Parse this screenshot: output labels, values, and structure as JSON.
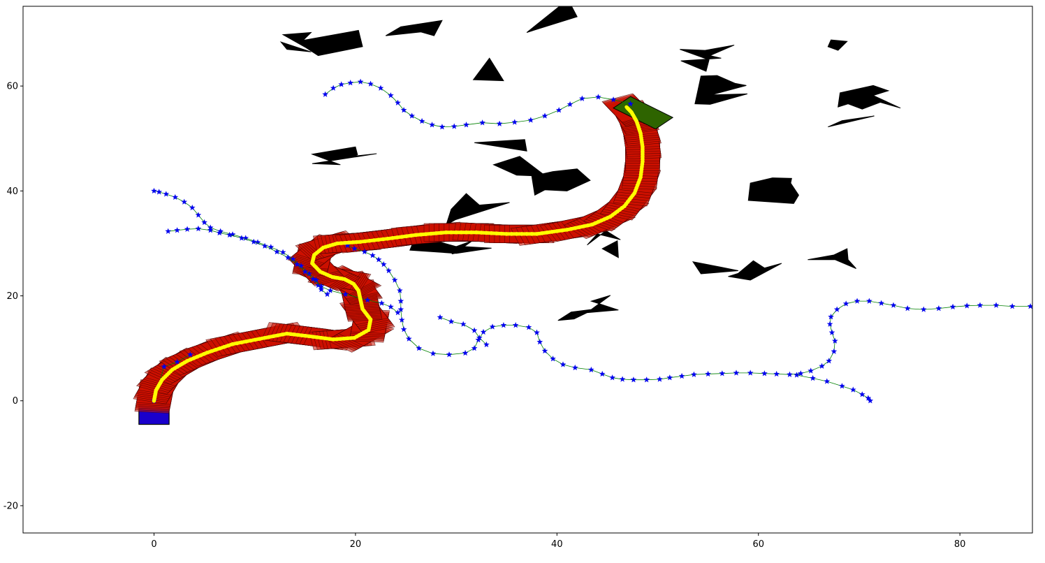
{
  "chart_data": {
    "type": "scatter",
    "title": "",
    "xlabel": "",
    "ylabel": "",
    "xlim": [
      -13,
      87.2
    ],
    "ylim": [
      -25.2,
      75.2
    ],
    "xticks": [
      0,
      20,
      40,
      60,
      80
    ],
    "yticks": [
      -20,
      0,
      20,
      40,
      60
    ],
    "xtick_labels": [
      "0",
      "20",
      "40",
      "60",
      "80"
    ],
    "ytick_labels": [
      "-20",
      "0",
      "20",
      "40",
      "60"
    ],
    "grid": false,
    "legend": "none",
    "colors": {
      "obstacle": "#000000",
      "start": "#1a00cc",
      "goal": "#2e6400",
      "swept_fill": "#cc1100",
      "swept_edge": "#3a0000",
      "path": "#ffff00",
      "tree_node": "#0000ee",
      "tree_edge": "#008000"
    },
    "start_box": {
      "x": [
        -1.5,
        1.5
      ],
      "y": [
        -4.5,
        1.5
      ]
    },
    "goal_polygon": [
      [
        45.6,
        55.8
      ],
      [
        47.3,
        58.0
      ],
      [
        51.5,
        54.0
      ],
      [
        49.8,
        51.8
      ]
    ],
    "obstacles": [
      [
        [
          12.8,
          69.8
        ],
        [
          15.6,
          70.2
        ],
        [
          14.8,
          68.7
        ],
        [
          20.3,
          70.6
        ],
        [
          20.7,
          67.5
        ],
        [
          16.3,
          65.8
        ],
        [
          15.1,
          67.3
        ]
      ],
      [
        [
          13.2,
          67.0
        ],
        [
          15.6,
          66.5
        ],
        [
          12.6,
          68.4
        ]
      ],
      [
        [
          23.0,
          69.6
        ],
        [
          24.5,
          71.3
        ],
        [
          28.6,
          72.5
        ],
        [
          27.8,
          69.6
        ],
        [
          26.5,
          70.3
        ]
      ],
      [
        [
          33.3,
          65.3
        ],
        [
          34.7,
          61.0
        ],
        [
          31.7,
          61.2
        ]
      ],
      [
        [
          37.0,
          70.2
        ],
        [
          42.0,
          73.2
        ],
        [
          41.1,
          76.5
        ]
      ],
      [
        [
          52.2,
          67.0
        ],
        [
          54.7,
          66.8
        ],
        [
          57.6,
          67.8
        ],
        [
          55.2,
          65.8
        ],
        [
          56.3,
          65.3
        ],
        [
          52.3,
          64.8
        ],
        [
          54.8,
          62.8
        ],
        [
          55.1,
          65.0
        ]
      ],
      [
        [
          67.2,
          68.8
        ],
        [
          68.8,
          68.5
        ],
        [
          67.9,
          66.8
        ],
        [
          66.9,
          67.5
        ]
      ],
      [
        [
          54.3,
          61.9
        ],
        [
          55.9,
          62.0
        ],
        [
          57.7,
          60.5
        ],
        [
          58.8,
          60.1
        ],
        [
          55.3,
          58.3
        ],
        [
          58.9,
          58.5
        ],
        [
          55.2,
          56.5
        ],
        [
          53.7,
          56.6
        ]
      ],
      [
        [
          68.1,
          58.7
        ],
        [
          71.4,
          60.1
        ],
        [
          72.9,
          59.1
        ],
        [
          71.4,
          58.2
        ],
        [
          74.1,
          55.8
        ],
        [
          72.1,
          56.9
        ],
        [
          70.3,
          55.6
        ],
        [
          68.9,
          56.6
        ],
        [
          67.9,
          56.0
        ]
      ],
      [
        [
          66.9,
          52.2
        ],
        [
          69.3,
          53.3
        ],
        [
          71.5,
          54.3
        ],
        [
          68.3,
          53.4
        ]
      ],
      [
        [
          15.7,
          47.0
        ],
        [
          20.0,
          48.4
        ],
        [
          20.2,
          46.9
        ],
        [
          19.7,
          46.6
        ],
        [
          22.1,
          47.1
        ],
        [
          15.7,
          45.2
        ],
        [
          18.5,
          45.0
        ]
      ],
      [
        [
          31.8,
          49.2
        ],
        [
          36.8,
          49.8
        ],
        [
          37.0,
          47.6
        ]
      ],
      [
        [
          33.7,
          45.0
        ],
        [
          36.0,
          43.0
        ],
        [
          38.9,
          42.8
        ],
        [
          36.3,
          46.6
        ]
      ],
      [
        [
          37.5,
          42.8
        ],
        [
          39.6,
          43.7
        ],
        [
          42.0,
          44.2
        ],
        [
          43.3,
          42.0
        ],
        [
          41.0,
          40.0
        ],
        [
          38.8,
          40.2
        ],
        [
          37.8,
          39.2
        ]
      ],
      [
        [
          59.2,
          41.5
        ],
        [
          61.4,
          42.5
        ],
        [
          63.3,
          42.4
        ],
        [
          63.2,
          41.5
        ],
        [
          64.0,
          39.2
        ],
        [
          63.5,
          37.6
        ],
        [
          59.0,
          38.2
        ]
      ],
      [
        [
          29.5,
          36.5
        ],
        [
          31.0,
          39.5
        ],
        [
          32.3,
          37.3
        ],
        [
          35.3,
          37.8
        ],
        [
          29.9,
          34.5
        ],
        [
          29.0,
          33.5
        ]
      ],
      [
        [
          26.0,
          31.5
        ],
        [
          27.7,
          30.6
        ],
        [
          30.0,
          29.4
        ],
        [
          31.6,
          30.5
        ],
        [
          30.8,
          29.4
        ],
        [
          33.5,
          29.1
        ],
        [
          30.0,
          28.1
        ],
        [
          25.4,
          28.7
        ]
      ],
      [
        [
          43.0,
          29.7
        ],
        [
          45.6,
          33.5
        ],
        [
          44.8,
          32.5
        ],
        [
          46.3,
          30.7
        ],
        [
          44.0,
          31.8
        ]
      ],
      [
        [
          44.5,
          29.0
        ],
        [
          46.1,
          27.3
        ],
        [
          46.0,
          30.5
        ]
      ],
      [
        [
          53.5,
          26.5
        ],
        [
          56.2,
          25.5
        ],
        [
          58.0,
          24.8
        ],
        [
          54.3,
          24.2
        ]
      ],
      [
        [
          58.0,
          24.3
        ],
        [
          59.5,
          26.7
        ],
        [
          60.6,
          25.3
        ],
        [
          62.3,
          26.2
        ],
        [
          59.2,
          23.0
        ],
        [
          57.0,
          23.7
        ]
      ],
      [
        [
          67.5,
          27.8
        ],
        [
          68.8,
          29.0
        ],
        [
          68.9,
          26.9
        ],
        [
          69.7,
          25.2
        ],
        [
          67.6,
          26.9
        ],
        [
          64.9,
          26.9
        ]
      ],
      [
        [
          41.4,
          16.9
        ],
        [
          43.4,
          17.4
        ],
        [
          45.3,
          20.1
        ],
        [
          43.4,
          19.0
        ],
        [
          46.1,
          17.3
        ],
        [
          43.0,
          16.8
        ],
        [
          41.7,
          15.6
        ],
        [
          40.1,
          15.3
        ]
      ],
      [
        [
          29.5,
          29.0
        ],
        [
          29.6,
          28.0
        ],
        [
          31.5,
          28.8
        ]
      ]
    ],
    "swept_path": [
      [
        0.0,
        0.0
      ],
      [
        0.2,
        2.0
      ],
      [
        0.8,
        4.0
      ],
      [
        1.8,
        5.9
      ],
      [
        3.3,
        7.6
      ],
      [
        5.3,
        9.2
      ],
      [
        7.8,
        10.8
      ],
      [
        10.5,
        11.8
      ],
      [
        13.2,
        12.8
      ],
      [
        15.4,
        12.3
      ],
      [
        17.8,
        11.7
      ],
      [
        19.9,
        12.0
      ],
      [
        21.3,
        13.5
      ],
      [
        21.5,
        15.5
      ],
      [
        20.7,
        17.5
      ],
      [
        20.5,
        19.2
      ],
      [
        20.3,
        21.0
      ],
      [
        19.8,
        22.3
      ],
      [
        18.9,
        23.2
      ],
      [
        17.7,
        23.6
      ],
      [
        16.5,
        24.6
      ],
      [
        15.7,
        26.2
      ],
      [
        15.9,
        27.8
      ],
      [
        16.8,
        29.2
      ],
      [
        18.2,
        30.0
      ],
      [
        20.5,
        30.3
      ],
      [
        23.2,
        30.9
      ],
      [
        26.0,
        31.6
      ],
      [
        29.0,
        32.1
      ],
      [
        32.0,
        32.1
      ],
      [
        35.0,
        31.8
      ],
      [
        38.0,
        31.8
      ],
      [
        41.0,
        32.6
      ],
      [
        43.5,
        33.6
      ],
      [
        45.3,
        35.1
      ],
      [
        46.7,
        37.1
      ],
      [
        47.7,
        39.6
      ],
      [
        48.3,
        42.6
      ],
      [
        48.5,
        45.6
      ],
      [
        48.5,
        48.4
      ],
      [
        48.3,
        51.0
      ],
      [
        47.9,
        53.3
      ],
      [
        47.4,
        55.0
      ],
      [
        46.9,
        56.0
      ]
    ],
    "trees": [
      [
        [
          0.0,
          40.0
        ],
        [
          0.5,
          39.8
        ],
        [
          1.2,
          39.4
        ],
        [
          2.1,
          38.8
        ],
        [
          3.0,
          37.9
        ],
        [
          3.8,
          36.8
        ],
        [
          4.4,
          35.4
        ],
        [
          5.0,
          34.0
        ],
        [
          5.6,
          33.0
        ],
        [
          6.6,
          32.3
        ],
        [
          7.8,
          31.7
        ],
        [
          9.1,
          31.0
        ],
        [
          10.3,
          30.2
        ],
        [
          11.6,
          29.3
        ],
        [
          12.8,
          28.3
        ],
        [
          13.8,
          27.0
        ],
        [
          14.6,
          25.7
        ],
        [
          15.4,
          24.2
        ],
        [
          16.1,
          23.0
        ],
        [
          16.3,
          22.0
        ],
        [
          16.6,
          21.2
        ],
        [
          17.2,
          20.3
        ]
      ],
      [
        [
          1.4,
          32.3
        ],
        [
          2.3,
          32.5
        ],
        [
          3.3,
          32.7
        ],
        [
          4.4,
          32.8
        ],
        [
          5.6,
          32.5
        ],
        [
          6.5,
          32.0
        ],
        [
          7.5,
          31.6
        ],
        [
          8.7,
          31.0
        ],
        [
          9.9,
          30.3
        ],
        [
          11.0,
          29.5
        ],
        [
          12.2,
          28.4
        ],
        [
          13.3,
          27.3
        ],
        [
          14.2,
          26.0
        ],
        [
          15.0,
          24.6
        ],
        [
          15.8,
          23.2
        ],
        [
          16.6,
          21.8
        ],
        [
          17.5,
          21.0
        ],
        [
          19.0,
          20.3
        ],
        [
          21.2,
          19.2
        ],
        [
          22.6,
          18.6
        ],
        [
          23.5,
          17.9
        ],
        [
          24.2,
          16.8
        ]
      ],
      [
        [
          17.0,
          58.4
        ],
        [
          17.8,
          59.6
        ],
        [
          18.6,
          60.3
        ],
        [
          19.5,
          60.6
        ],
        [
          20.5,
          60.8
        ],
        [
          21.5,
          60.4
        ],
        [
          22.5,
          59.6
        ],
        [
          23.5,
          58.2
        ],
        [
          24.2,
          56.8
        ],
        [
          24.8,
          55.4
        ],
        [
          25.6,
          54.3
        ],
        [
          26.6,
          53.3
        ],
        [
          27.6,
          52.6
        ],
        [
          28.6,
          52.2
        ],
        [
          29.8,
          52.3
        ],
        [
          31.0,
          52.6
        ],
        [
          32.6,
          53.0
        ],
        [
          34.3,
          52.8
        ],
        [
          35.8,
          53.1
        ],
        [
          37.4,
          53.5
        ],
        [
          38.8,
          54.3
        ],
        [
          40.2,
          55.4
        ],
        [
          41.3,
          56.5
        ],
        [
          42.5,
          57.6
        ],
        [
          44.1,
          57.9
        ],
        [
          45.6,
          57.4
        ],
        [
          47.3,
          56.6
        ]
      ],
      [
        [
          19.2,
          29.6
        ],
        [
          19.9,
          29.0
        ],
        [
          20.9,
          28.4
        ],
        [
          21.7,
          27.7
        ],
        [
          22.3,
          26.9
        ],
        [
          22.8,
          26.0
        ],
        [
          23.3,
          24.8
        ],
        [
          23.9,
          23.0
        ],
        [
          24.4,
          21.0
        ],
        [
          24.5,
          19.0
        ],
        [
          24.5,
          17.4
        ],
        [
          24.6,
          15.4
        ],
        [
          24.8,
          13.6
        ],
        [
          25.3,
          11.8
        ],
        [
          26.3,
          10.0
        ],
        [
          27.7,
          9.0
        ],
        [
          29.3,
          8.8
        ],
        [
          30.9,
          9.1
        ],
        [
          31.8,
          10.0
        ],
        [
          32.2,
          11.6
        ],
        [
          32.7,
          13.1
        ],
        [
          33.6,
          14.1
        ],
        [
          34.7,
          14.4
        ],
        [
          35.9,
          14.4
        ],
        [
          37.2,
          14.0
        ],
        [
          38.0,
          13.0
        ],
        [
          38.3,
          11.2
        ],
        [
          38.8,
          9.5
        ],
        [
          39.6,
          8.0
        ],
        [
          40.6,
          6.9
        ],
        [
          41.8,
          6.3
        ],
        [
          43.4,
          5.9
        ],
        [
          44.5,
          5.1
        ],
        [
          45.5,
          4.4
        ],
        [
          46.5,
          4.1
        ],
        [
          47.6,
          4.0
        ],
        [
          48.9,
          4.0
        ],
        [
          50.2,
          4.1
        ],
        [
          51.2,
          4.4
        ],
        [
          52.4,
          4.7
        ],
        [
          53.6,
          5.0
        ],
        [
          55.0,
          5.1
        ],
        [
          56.4,
          5.2
        ],
        [
          57.8,
          5.3
        ],
        [
          59.2,
          5.3
        ],
        [
          60.6,
          5.2
        ],
        [
          61.8,
          5.1
        ],
        [
          63.1,
          5.0
        ],
        [
          64.2,
          5.2
        ],
        [
          65.2,
          5.7
        ],
        [
          66.3,
          6.6
        ],
        [
          67.0,
          7.6
        ],
        [
          67.5,
          9.4
        ],
        [
          67.6,
          11.4
        ],
        [
          67.3,
          13.0
        ],
        [
          67.1,
          14.6
        ],
        [
          67.2,
          16.0
        ],
        [
          67.8,
          17.4
        ],
        [
          68.7,
          18.5
        ],
        [
          69.8,
          19.0
        ],
        [
          71.0,
          19.0
        ],
        [
          72.2,
          18.6
        ],
        [
          73.4,
          18.2
        ],
        [
          74.8,
          17.6
        ],
        [
          76.4,
          17.4
        ],
        [
          77.9,
          17.6
        ],
        [
          79.3,
          17.9
        ],
        [
          80.7,
          18.1
        ],
        [
          82.0,
          18.2
        ],
        [
          83.6,
          18.2
        ],
        [
          85.2,
          18.0
        ],
        [
          87.0,
          18.0
        ]
      ],
      [
        [
          28.4,
          15.9
        ],
        [
          29.5,
          15.1
        ],
        [
          30.7,
          14.6
        ],
        [
          31.8,
          13.4
        ],
        [
          32.3,
          12.0
        ],
        [
          33.0,
          10.7
        ]
      ],
      [
        [
          63.8,
          4.9
        ],
        [
          65.4,
          4.3
        ],
        [
          66.8,
          3.7
        ],
        [
          68.3,
          2.8
        ],
        [
          69.4,
          2.1
        ],
        [
          70.3,
          1.2
        ],
        [
          70.9,
          0.5
        ],
        [
          71.1,
          0.0
        ]
      ],
      [
        [
          0.0,
          0.0
        ],
        [
          1.0,
          6.5
        ],
        [
          2.3,
          7.4
        ],
        [
          3.6,
          8.8
        ]
      ]
    ]
  }
}
